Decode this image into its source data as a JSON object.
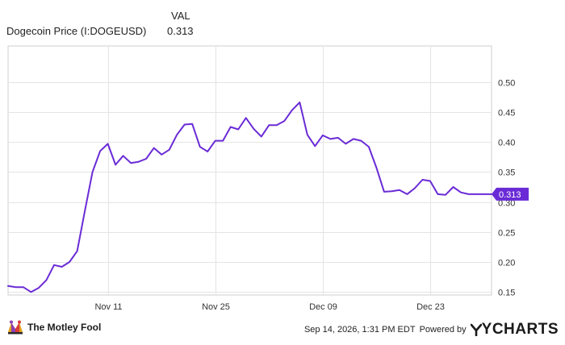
{
  "legend": {
    "header": "VAL",
    "series_name": "Dogecoin Price (I:DOGEUSD)",
    "series_value": "0.313"
  },
  "colors": {
    "line": "#6a2bd6",
    "badge": "#6a2bd6",
    "grid": "#e4e4e4",
    "border": "#cfcfcf"
  },
  "chart_data": {
    "type": "line",
    "title": "",
    "xlabel": "",
    "ylabel": "",
    "ylim": [
      0.145,
      0.56
    ],
    "yticks": [
      0.15,
      0.2,
      0.25,
      0.3,
      0.35,
      0.4,
      0.45,
      0.5
    ],
    "ytick_labels": [
      "0.15",
      "0.20",
      "0.25",
      "0.30",
      "0.35",
      "0.40",
      "0.45",
      "0.50"
    ],
    "xlim": [
      "2024-10-29",
      "2024-12-31"
    ],
    "xticks": [
      "2024-11-11",
      "2024-11-25",
      "2024-12-09",
      "2024-12-23"
    ],
    "xtick_labels": [
      "Nov 11",
      "Nov 25",
      "Dec 09",
      "Dec 23"
    ],
    "grid": true,
    "last_value_label": "0.313",
    "series": [
      {
        "name": "Dogecoin Price (I:DOGEUSD)",
        "x": [
          "2024-10-29",
          "2024-10-30",
          "2024-10-31",
          "2024-11-01",
          "2024-11-02",
          "2024-11-03",
          "2024-11-04",
          "2024-11-05",
          "2024-11-06",
          "2024-11-07",
          "2024-11-08",
          "2024-11-09",
          "2024-11-10",
          "2024-11-11",
          "2024-11-12",
          "2024-11-13",
          "2024-11-14",
          "2024-11-15",
          "2024-11-16",
          "2024-11-17",
          "2024-11-18",
          "2024-11-19",
          "2024-11-20",
          "2024-11-21",
          "2024-11-22",
          "2024-11-23",
          "2024-11-24",
          "2024-11-25",
          "2024-11-26",
          "2024-11-27",
          "2024-11-28",
          "2024-11-29",
          "2024-11-30",
          "2024-12-01",
          "2024-12-02",
          "2024-12-03",
          "2024-12-04",
          "2024-12-05",
          "2024-12-06",
          "2024-12-07",
          "2024-12-08",
          "2024-12-09",
          "2024-12-10",
          "2024-12-11",
          "2024-12-12",
          "2024-12-13",
          "2024-12-14",
          "2024-12-15",
          "2024-12-16",
          "2024-12-17",
          "2024-12-18",
          "2024-12-19",
          "2024-12-20",
          "2024-12-21",
          "2024-12-22",
          "2024-12-23",
          "2024-12-24",
          "2024-12-25",
          "2024-12-26",
          "2024-12-27",
          "2024-12-28",
          "2024-12-29",
          "2024-12-30",
          "2024-12-31"
        ],
        "values": [
          0.16,
          0.158,
          0.158,
          0.15,
          0.157,
          0.17,
          0.195,
          0.192,
          0.2,
          0.218,
          0.285,
          0.35,
          0.385,
          0.397,
          0.362,
          0.377,
          0.365,
          0.367,
          0.372,
          0.39,
          0.379,
          0.387,
          0.412,
          0.429,
          0.43,
          0.392,
          0.384,
          0.402,
          0.402,
          0.425,
          0.421,
          0.44,
          0.422,
          0.409,
          0.428,
          0.428,
          0.435,
          0.453,
          0.466,
          0.412,
          0.393,
          0.411,
          0.405,
          0.407,
          0.397,
          0.405,
          0.402,
          0.392,
          0.357,
          0.317,
          0.318,
          0.32,
          0.313,
          0.323,
          0.337,
          0.335,
          0.313,
          0.312,
          0.325,
          0.316,
          0.313,
          0.313,
          0.313,
          0.313
        ]
      }
    ]
  },
  "footer": {
    "brand": "The Motley Fool",
    "timestamp": "Sep 14, 2026, 1:31 PM EDT",
    "powered_by": "Powered by",
    "ycharts": "YCHARTS"
  }
}
